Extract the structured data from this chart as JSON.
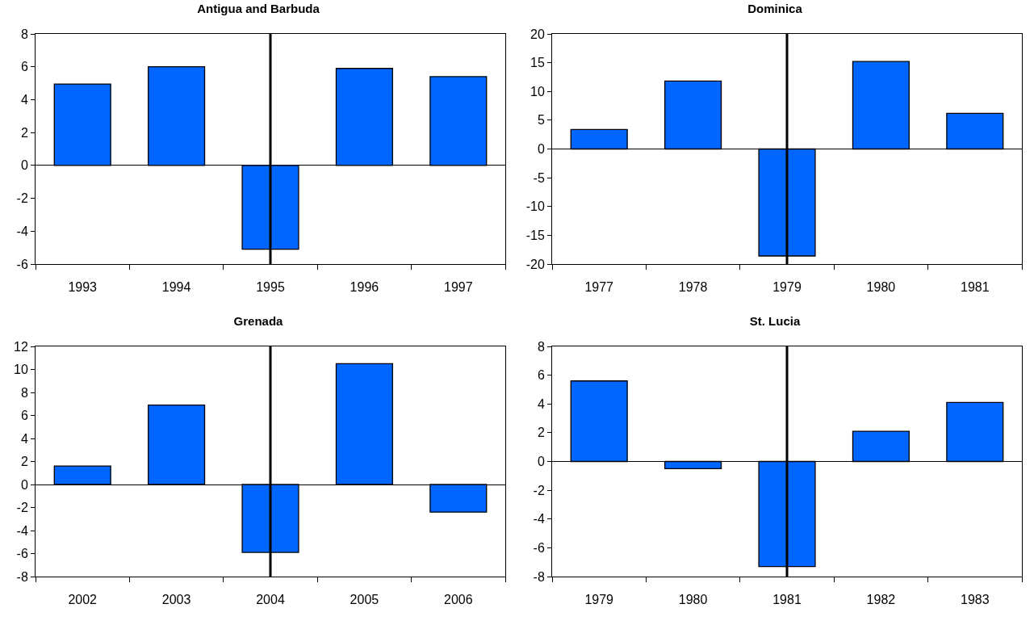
{
  "chart_data": [
    {
      "type": "bar",
      "title": "Antigua and Barbuda",
      "categories": [
        "1993",
        "1994",
        "1995",
        "1996",
        "1997"
      ],
      "values": [
        4.95,
        6.0,
        -5.1,
        5.9,
        5.4
      ],
      "color": "#0066ff",
      "ylim": [
        -6,
        8
      ],
      "yticks": [
        -6,
        -4,
        -2,
        0,
        2,
        4,
        6,
        8
      ],
      "grid": false,
      "ref_lines": [
        {
          "axis": "x",
          "value": "1995",
          "color": "#000000"
        }
      ]
    },
    {
      "type": "bar",
      "title": "Dominica",
      "categories": [
        "1977",
        "1978",
        "1979",
        "1980",
        "1981"
      ],
      "values": [
        3.4,
        11.8,
        -18.6,
        15.2,
        6.2
      ],
      "color": "#0066ff",
      "ylim": [
        -20,
        20
      ],
      "yticks": [
        -20,
        -15,
        -10,
        -5,
        0,
        5,
        10,
        15,
        20
      ],
      "grid": false,
      "ref_lines": [
        {
          "axis": "x",
          "value": "1979",
          "color": "#000000"
        }
      ]
    },
    {
      "type": "bar",
      "title": "Grenada",
      "categories": [
        "2002",
        "2003",
        "2004",
        "2005",
        "2006"
      ],
      "values": [
        1.6,
        6.9,
        -5.9,
        10.5,
        -2.4
      ],
      "color": "#0066ff",
      "ylim": [
        -8,
        12
      ],
      "yticks": [
        -8,
        -6,
        -4,
        -2,
        0,
        2,
        4,
        6,
        8,
        10,
        12
      ],
      "grid": false,
      "ref_lines": [
        {
          "axis": "x",
          "value": "2004",
          "color": "#000000"
        }
      ]
    },
    {
      "type": "bar",
      "title": "St. Lucia",
      "categories": [
        "1979",
        "1980",
        "1981",
        "1982",
        "1983"
      ],
      "values": [
        5.6,
        -0.5,
        -7.3,
        2.1,
        4.1
      ],
      "color": "#0066ff",
      "ylim": [
        -8,
        8
      ],
      "yticks": [
        -8,
        -6,
        -4,
        -2,
        0,
        2,
        4,
        6,
        8
      ],
      "grid": false,
      "ref_lines": [
        {
          "axis": "x",
          "value": "1981",
          "color": "#000000"
        }
      ]
    }
  ]
}
